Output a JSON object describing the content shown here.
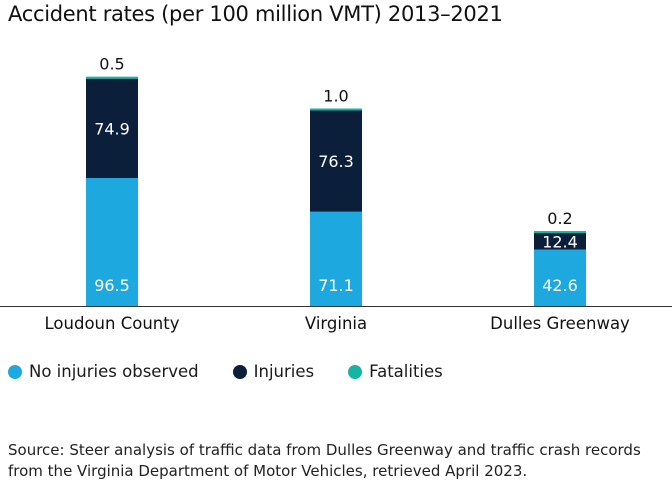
{
  "title": "Accident rates (per 100 million VMT) 2013–2021",
  "colors": {
    "no_injuries": "#1ea8e0",
    "injuries": "#0c1f3a",
    "fatalities": "#17b3a3"
  },
  "legend": [
    {
      "label": "No injuries observed",
      "color": "#1ea8e0"
    },
    {
      "label": "Injuries",
      "color": "#0c1f3a"
    },
    {
      "label": "Fatalities",
      "color": "#17b3a3"
    }
  ],
  "source": "Source: Steer analysis of traffic data from Dulles Greenway and traffic crash records from the Virginia Department of Motor Vehicles, retrieved April 2023.",
  "chart_data": {
    "type": "bar",
    "stacked": true,
    "title": "Accident rates (per 100 million VMT) 2013–2021",
    "categories": [
      "Loudoun County",
      "Virginia",
      "Dulles Greenway"
    ],
    "series": [
      {
        "name": "No injuries observed",
        "values": [
          96.5,
          71.1,
          42.6
        ],
        "labels": [
          "96.5",
          "71.1",
          "42.6"
        ]
      },
      {
        "name": "Injuries",
        "values": [
          74.9,
          76.3,
          12.4
        ],
        "labels": [
          "74.9",
          "76.3",
          "12.4"
        ]
      },
      {
        "name": "Fatalities",
        "values": [
          0.5,
          1.0,
          0.2
        ],
        "labels": [
          "0.5",
          "1.0",
          "0.2"
        ]
      }
    ],
    "ylim": [
      0,
      171.9
    ],
    "grid": false,
    "legend_position": "bottom-left"
  }
}
